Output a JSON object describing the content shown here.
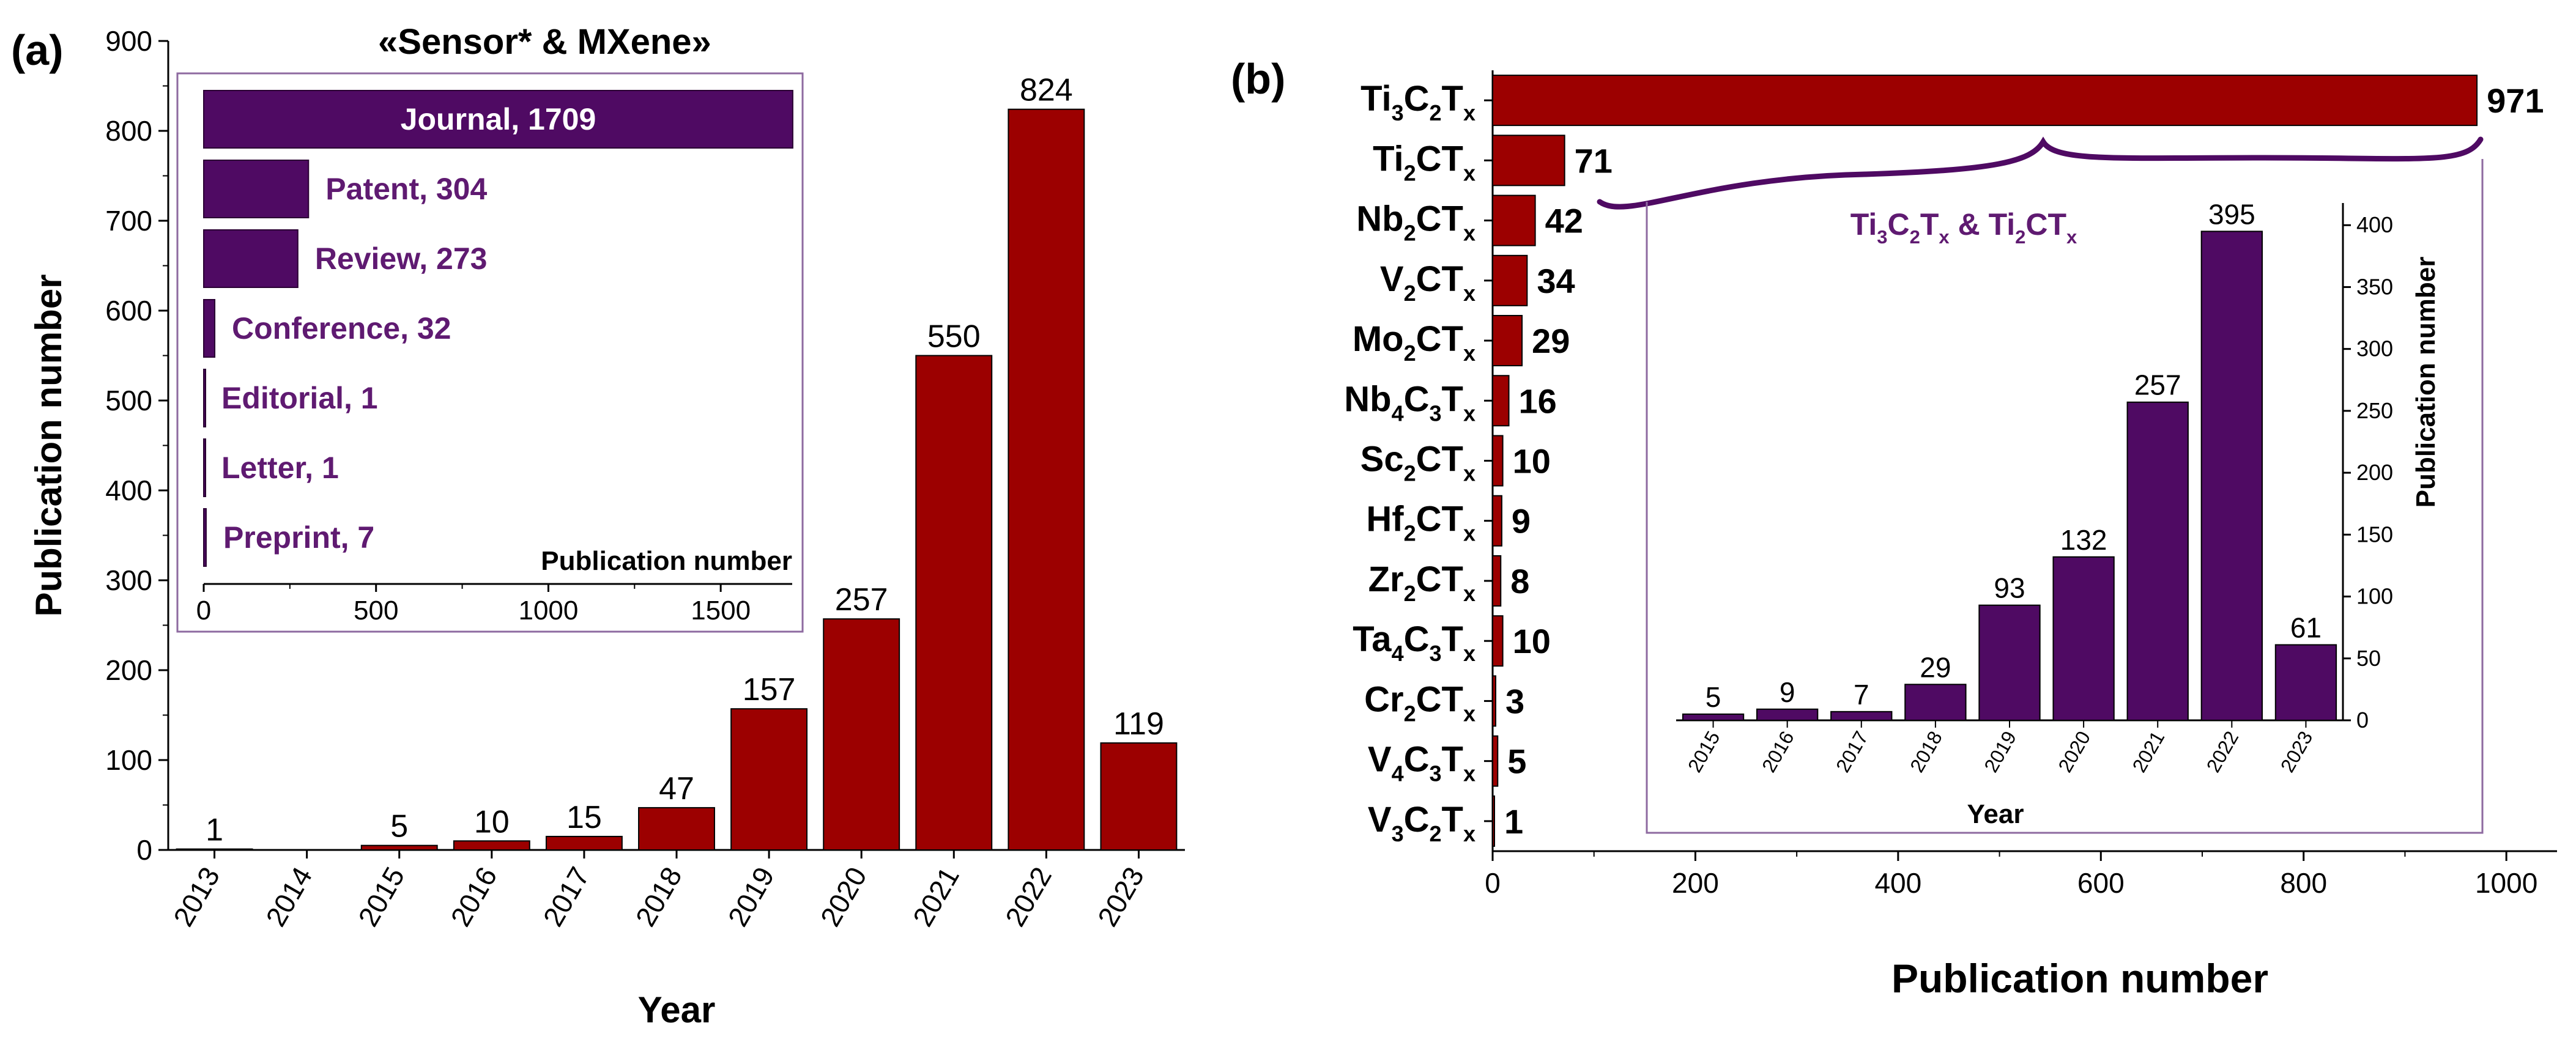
{
  "colors": {
    "red": "#9c0000",
    "purple": "#4f0a63",
    "purple_text": "#5f1a71",
    "axis": "#000000"
  },
  "chart_data": [
    {
      "id": "a-main",
      "panel_label": "(a)",
      "type": "bar",
      "title": "",
      "xlabel": "Year",
      "ylabel": "Publication number",
      "categories": [
        "2013",
        "2014",
        "2015",
        "2016",
        "2017",
        "2018",
        "2019",
        "2020",
        "2021",
        "2022",
        "2023"
      ],
      "values": [
        1,
        0,
        5,
        10,
        15,
        47,
        157,
        257,
        550,
        824,
        119
      ],
      "data_labels": [
        "1",
        "",
        "5",
        "10",
        "15",
        "47",
        "157",
        "257",
        "550",
        "824",
        "119"
      ],
      "ylim": [
        0,
        900
      ],
      "yticks": [
        0,
        100,
        200,
        300,
        400,
        500,
        600,
        700,
        800,
        900
      ],
      "ytick_labels": [
        "0",
        "100",
        "200",
        "300",
        "400",
        "500",
        "600",
        "700",
        "800",
        "900"
      ]
    },
    {
      "id": "a-inset",
      "type": "bar",
      "orientation": "horizontal",
      "title": "«Sensor* & MXene»",
      "xlabel": "Publication number",
      "categories": [
        "Journal",
        "Patent",
        "Review",
        "Conference",
        "Editorial",
        "Letter",
        "Preprint"
      ],
      "values": [
        1709,
        304,
        273,
        32,
        1,
        1,
        7
      ],
      "bar_labels": [
        "Journal, 1709",
        "Patent, 304",
        "Review, 273",
        "Conference, 32",
        "Editorial, 1",
        "Letter, 1",
        "Preprint, 7"
      ],
      "xlim": [
        0,
        1750
      ],
      "xticks": [
        0,
        500,
        1000,
        1500
      ],
      "xtick_labels": [
        "0",
        "500",
        "1000",
        "1500"
      ]
    },
    {
      "id": "b-main",
      "panel_label": "(b)",
      "type": "bar",
      "orientation": "horizontal",
      "xlabel": "Publication number",
      "categories": [
        {
          "parts": [
            [
              "Ti",
              ""
            ],
            [
              "3",
              "sub"
            ],
            [
              "C",
              ""
            ],
            [
              "2",
              "sub"
            ],
            [
              "T",
              ""
            ],
            [
              "x",
              "sub"
            ]
          ]
        },
        {
          "parts": [
            [
              "Ti",
              ""
            ],
            [
              "2",
              "sub"
            ],
            [
              "CT",
              ""
            ],
            [
              "x",
              "sub"
            ]
          ]
        },
        {
          "parts": [
            [
              "Nb",
              ""
            ],
            [
              "2",
              "sub"
            ],
            [
              "CT",
              ""
            ],
            [
              "x",
              "sub"
            ]
          ]
        },
        {
          "parts": [
            [
              "V",
              ""
            ],
            [
              "2",
              "sub"
            ],
            [
              "CT",
              ""
            ],
            [
              "x",
              "sub"
            ]
          ]
        },
        {
          "parts": [
            [
              "Mo",
              ""
            ],
            [
              "2",
              "sub"
            ],
            [
              "CT",
              ""
            ],
            [
              "x",
              "sub"
            ]
          ]
        },
        {
          "parts": [
            [
              "Nb",
              ""
            ],
            [
              "4",
              "sub"
            ],
            [
              "C",
              ""
            ],
            [
              "3",
              "sub"
            ],
            [
              "T",
              ""
            ],
            [
              "x",
              "sub"
            ]
          ]
        },
        {
          "parts": [
            [
              "Sc",
              ""
            ],
            [
              "2",
              "sub"
            ],
            [
              "CT",
              ""
            ],
            [
              "x",
              "sub"
            ]
          ]
        },
        {
          "parts": [
            [
              "Hf",
              ""
            ],
            [
              "2",
              "sub"
            ],
            [
              "CT",
              ""
            ],
            [
              "x",
              "sub"
            ]
          ]
        },
        {
          "parts": [
            [
              "Zr",
              ""
            ],
            [
              "2",
              "sub"
            ],
            [
              "CT",
              ""
            ],
            [
              "x",
              "sub"
            ]
          ]
        },
        {
          "parts": [
            [
              "Ta",
              ""
            ],
            [
              "4",
              "sub"
            ],
            [
              "C",
              ""
            ],
            [
              "3",
              "sub"
            ],
            [
              "T",
              ""
            ],
            [
              "x",
              "sub"
            ]
          ]
        },
        {
          "parts": [
            [
              "Cr",
              ""
            ],
            [
              "2",
              "sub"
            ],
            [
              "CT",
              ""
            ],
            [
              "x",
              "sub"
            ]
          ]
        },
        {
          "parts": [
            [
              "V",
              ""
            ],
            [
              "4",
              "sub"
            ],
            [
              "C",
              ""
            ],
            [
              "3",
              "sub"
            ],
            [
              "T",
              ""
            ],
            [
              "x",
              "sub"
            ]
          ]
        },
        {
          "parts": [
            [
              "V",
              ""
            ],
            [
              "3",
              "sub"
            ],
            [
              "C",
              ""
            ],
            [
              "2",
              "sub"
            ],
            [
              "T",
              ""
            ],
            [
              "x",
              "sub"
            ]
          ]
        }
      ],
      "values": [
        971,
        71,
        42,
        34,
        29,
        16,
        10,
        9,
        8,
        10,
        3,
        5,
        1
      ],
      "data_labels": [
        "971",
        "71",
        "42",
        "34",
        "29",
        "16",
        "10",
        "9",
        "8",
        "10",
        "3",
        "5",
        "1"
      ],
      "xlim": [
        0,
        1050
      ],
      "xticks": [
        0,
        200,
        400,
        600,
        800,
        1000
      ],
      "xtick_labels": [
        "0",
        "200",
        "400",
        "600",
        "800",
        "1000"
      ]
    },
    {
      "id": "b-inset",
      "type": "bar",
      "title_parts": [
        [
          "Ti",
          ""
        ],
        [
          "3",
          "sub"
        ],
        [
          "C",
          ""
        ],
        [
          "2",
          "sub"
        ],
        [
          "T",
          ""
        ],
        [
          "x",
          "sub"
        ],
        [
          " & Ti",
          ""
        ],
        [
          "2",
          "sub"
        ],
        [
          "CT",
          ""
        ],
        [
          "x",
          "sub"
        ]
      ],
      "xlabel": "Year",
      "ylabel": "Publication number",
      "categories": [
        "2015",
        "2016",
        "2017",
        "2018",
        "2019",
        "2020",
        "2021",
        "2022",
        "2023"
      ],
      "values": [
        5,
        9,
        7,
        29,
        93,
        132,
        257,
        395,
        61
      ],
      "data_labels": [
        "5",
        "9",
        "7",
        "29",
        "93",
        "132",
        "257",
        "395",
        "61"
      ],
      "ylim": [
        0,
        410
      ],
      "yticks": [
        0,
        50,
        100,
        150,
        200,
        250,
        300,
        350,
        400
      ],
      "ytick_labels": [
        "0",
        "50",
        "100",
        "150",
        "200",
        "250",
        "300",
        "350",
        "400"
      ]
    }
  ]
}
